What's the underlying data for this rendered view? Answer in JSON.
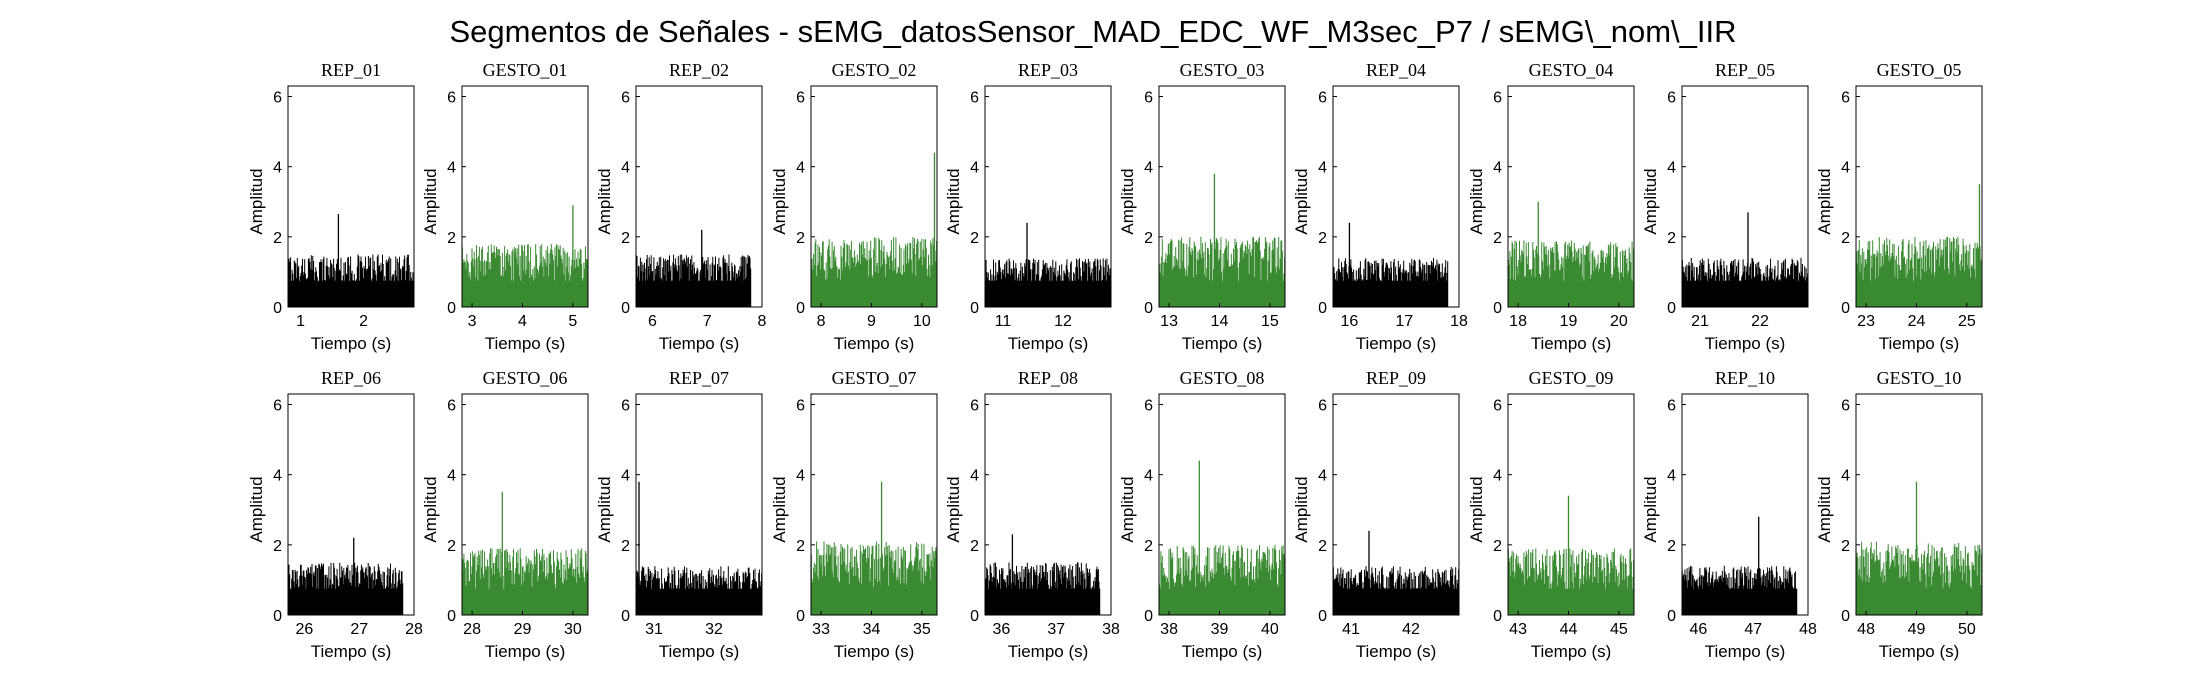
{
  "figure": {
    "title": "Segmentos de Señales - sEMG_datosSensor_MAD_EDC_WF_M3sec_P7 / sEMG\\_nom\\_IIR"
  },
  "colors": {
    "rep": "#000000",
    "gesto": "#3a8a32",
    "axes": "#000000",
    "background": "#ffffff"
  },
  "chart_data": [
    {
      "type": "bar",
      "row": 1,
      "col": 1,
      "title": "REP_01",
      "series": "rep",
      "xlabel": "Tiempo (s)",
      "ylabel": "Amplitud",
      "xlim": [
        0.8,
        2.8
      ],
      "ylim": [
        0,
        6.3
      ],
      "xticks": [
        1,
        2
      ],
      "yticks": [
        0,
        2,
        4,
        6
      ],
      "signal": {
        "x_start": 0.8,
        "x_end": 2.8,
        "typical_peak": 1.5,
        "max_peak": 2.65,
        "max_at": 1.6
      }
    },
    {
      "type": "bar",
      "row": 1,
      "col": 2,
      "title": "GESTO_01",
      "series": "gesto",
      "xlabel": "Tiempo (s)",
      "ylabel": "Amplitud",
      "xlim": [
        2.8,
        5.3
      ],
      "ylim": [
        0,
        6.3
      ],
      "xticks": [
        3,
        4,
        5
      ],
      "yticks": [
        0,
        2,
        4,
        6
      ],
      "signal": {
        "x_start": 2.8,
        "x_end": 5.3,
        "typical_peak": 1.8,
        "max_peak": 2.9,
        "max_at": 5.0
      }
    },
    {
      "type": "bar",
      "row": 1,
      "col": 3,
      "title": "REP_02",
      "series": "rep",
      "xlabel": "Tiempo (s)",
      "ylabel": "Amplitud",
      "xlim": [
        5.7,
        8.0
      ],
      "ylim": [
        0,
        6.3
      ],
      "xticks": [
        6,
        7,
        8
      ],
      "yticks": [
        0,
        2,
        4,
        6
      ],
      "signal": {
        "x_start": 5.7,
        "x_end": 7.8,
        "typical_peak": 1.5,
        "max_peak": 2.2,
        "max_at": 6.9
      }
    },
    {
      "type": "bar",
      "row": 1,
      "col": 4,
      "title": "GESTO_02",
      "series": "gesto",
      "xlabel": "Tiempo (s)",
      "ylabel": "Amplitud",
      "xlim": [
        7.8,
        10.3
      ],
      "ylim": [
        0,
        6.3
      ],
      "xticks": [
        8,
        9,
        10
      ],
      "yticks": [
        0,
        2,
        4,
        6
      ],
      "signal": {
        "x_start": 7.8,
        "x_end": 10.3,
        "typical_peak": 2.0,
        "max_peak": 4.4,
        "max_at": 10.25
      }
    },
    {
      "type": "bar",
      "row": 1,
      "col": 5,
      "title": "REP_03",
      "series": "rep",
      "xlabel": "Tiempo (s)",
      "ylabel": "Amplitud",
      "xlim": [
        10.7,
        12.8
      ],
      "ylim": [
        0,
        6.3
      ],
      "xticks": [
        11,
        12
      ],
      "yticks": [
        0,
        2,
        4,
        6
      ],
      "signal": {
        "x_start": 10.7,
        "x_end": 12.8,
        "typical_peak": 1.4,
        "max_peak": 2.4,
        "max_at": 11.4
      }
    },
    {
      "type": "bar",
      "row": 1,
      "col": 6,
      "title": "GESTO_03",
      "series": "gesto",
      "xlabel": "Tiempo (s)",
      "ylabel": "Amplitud",
      "xlim": [
        12.8,
        15.3
      ],
      "ylim": [
        0,
        6.3
      ],
      "xticks": [
        13,
        14,
        15
      ],
      "yticks": [
        0,
        2,
        4,
        6
      ],
      "signal": {
        "x_start": 12.8,
        "x_end": 15.3,
        "typical_peak": 2.0,
        "max_peak": 3.8,
        "max_at": 13.9
      }
    },
    {
      "type": "bar",
      "row": 1,
      "col": 7,
      "title": "REP_04",
      "series": "rep",
      "xlabel": "Tiempo (s)",
      "ylabel": "Amplitud",
      "xlim": [
        15.7,
        18.0
      ],
      "ylim": [
        0,
        6.3
      ],
      "xticks": [
        16,
        17,
        18
      ],
      "yticks": [
        0,
        2,
        4,
        6
      ],
      "signal": {
        "x_start": 15.7,
        "x_end": 17.8,
        "typical_peak": 1.4,
        "max_peak": 2.4,
        "max_at": 16.0
      }
    },
    {
      "type": "bar",
      "row": 1,
      "col": 8,
      "title": "GESTO_04",
      "series": "gesto",
      "xlabel": "Tiempo (s)",
      "ylabel": "Amplitud",
      "xlim": [
        17.8,
        20.3
      ],
      "ylim": [
        0,
        6.3
      ],
      "xticks": [
        18,
        19,
        20
      ],
      "yticks": [
        0,
        2,
        4,
        6
      ],
      "signal": {
        "x_start": 17.8,
        "x_end": 20.3,
        "typical_peak": 1.9,
        "max_peak": 3.0,
        "max_at": 18.4
      }
    },
    {
      "type": "bar",
      "row": 1,
      "col": 9,
      "title": "REP_05",
      "series": "rep",
      "xlabel": "Tiempo (s)",
      "ylabel": "Amplitud",
      "xlim": [
        20.7,
        22.8
      ],
      "ylim": [
        0,
        6.3
      ],
      "xticks": [
        21,
        22
      ],
      "yticks": [
        0,
        2,
        4,
        6
      ],
      "signal": {
        "x_start": 20.7,
        "x_end": 22.8,
        "typical_peak": 1.4,
        "max_peak": 2.7,
        "max_at": 21.8
      }
    },
    {
      "type": "bar",
      "row": 1,
      "col": 10,
      "title": "GESTO_05",
      "series": "gesto",
      "xlabel": "Tiempo (s)",
      "ylabel": "Amplitud",
      "xlim": [
        22.8,
        25.3
      ],
      "ylim": [
        0,
        6.3
      ],
      "xticks": [
        23,
        24,
        25
      ],
      "yticks": [
        0,
        2,
        4,
        6
      ],
      "signal": {
        "x_start": 22.8,
        "x_end": 25.3,
        "typical_peak": 2.0,
        "max_peak": 3.5,
        "max_at": 25.25
      }
    },
    {
      "type": "bar",
      "row": 2,
      "col": 1,
      "title": "REP_06",
      "series": "rep",
      "xlabel": "Tiempo (s)",
      "ylabel": "Amplitud",
      "xlim": [
        25.7,
        28.0
      ],
      "ylim": [
        0,
        6.3
      ],
      "xticks": [
        26,
        27,
        28
      ],
      "yticks": [
        0,
        2,
        4,
        6
      ],
      "signal": {
        "x_start": 25.7,
        "x_end": 27.8,
        "typical_peak": 1.5,
        "max_peak": 2.2,
        "max_at": 26.9
      }
    },
    {
      "type": "bar",
      "row": 2,
      "col": 2,
      "title": "GESTO_06",
      "series": "gesto",
      "xlabel": "Tiempo (s)",
      "ylabel": "Amplitud",
      "xlim": [
        27.8,
        30.3
      ],
      "ylim": [
        0,
        6.3
      ],
      "xticks": [
        28,
        29,
        30
      ],
      "yticks": [
        0,
        2,
        4,
        6
      ],
      "signal": {
        "x_start": 27.8,
        "x_end": 30.3,
        "typical_peak": 1.9,
        "max_peak": 3.5,
        "max_at": 28.6
      }
    },
    {
      "type": "bar",
      "row": 2,
      "col": 3,
      "title": "REP_07",
      "series": "rep",
      "xlabel": "Tiempo (s)",
      "ylabel": "Amplitud",
      "xlim": [
        30.7,
        32.8
      ],
      "ylim": [
        0,
        6.3
      ],
      "xticks": [
        31,
        32
      ],
      "yticks": [
        0,
        2,
        4,
        6
      ],
      "signal": {
        "x_start": 30.7,
        "x_end": 32.8,
        "typical_peak": 1.4,
        "max_peak": 3.8,
        "max_at": 30.75
      }
    },
    {
      "type": "bar",
      "row": 2,
      "col": 4,
      "title": "GESTO_07",
      "series": "gesto",
      "xlabel": "Tiempo (s)",
      "ylabel": "Amplitud",
      "xlim": [
        32.8,
        35.3
      ],
      "ylim": [
        0,
        6.3
      ],
      "xticks": [
        33,
        34,
        35
      ],
      "yticks": [
        0,
        2,
        4,
        6
      ],
      "signal": {
        "x_start": 32.8,
        "x_end": 35.3,
        "typical_peak": 2.1,
        "max_peak": 3.8,
        "max_at": 34.2
      }
    },
    {
      "type": "bar",
      "row": 2,
      "col": 5,
      "title": "REP_08",
      "series": "rep",
      "xlabel": "Tiempo (s)",
      "ylabel": "Amplitud",
      "xlim": [
        35.7,
        38.0
      ],
      "ylim": [
        0,
        6.3
      ],
      "xticks": [
        36,
        37,
        38
      ],
      "yticks": [
        0,
        2,
        4,
        6
      ],
      "signal": {
        "x_start": 35.7,
        "x_end": 37.8,
        "typical_peak": 1.5,
        "max_peak": 2.3,
        "max_at": 36.2
      }
    },
    {
      "type": "bar",
      "row": 2,
      "col": 6,
      "title": "GESTO_08",
      "series": "gesto",
      "xlabel": "Tiempo (s)",
      "ylabel": "Amplitud",
      "xlim": [
        37.8,
        40.3
      ],
      "ylim": [
        0,
        6.3
      ],
      "xticks": [
        38,
        39,
        40
      ],
      "yticks": [
        0,
        2,
        4,
        6
      ],
      "signal": {
        "x_start": 37.8,
        "x_end": 40.3,
        "typical_peak": 2.0,
        "max_peak": 4.4,
        "max_at": 38.6
      }
    },
    {
      "type": "bar",
      "row": 2,
      "col": 7,
      "title": "REP_09",
      "series": "rep",
      "xlabel": "Tiempo (s)",
      "ylabel": "Amplitud",
      "xlim": [
        40.7,
        42.8
      ],
      "ylim": [
        0,
        6.3
      ],
      "xticks": [
        41,
        42
      ],
      "yticks": [
        0,
        2,
        4,
        6
      ],
      "signal": {
        "x_start": 40.7,
        "x_end": 42.8,
        "typical_peak": 1.4,
        "max_peak": 2.4,
        "max_at": 41.3
      }
    },
    {
      "type": "bar",
      "row": 2,
      "col": 8,
      "title": "GESTO_09",
      "series": "gesto",
      "xlabel": "Tiempo (s)",
      "ylabel": "Amplitud",
      "xlim": [
        42.8,
        45.3
      ],
      "ylim": [
        0,
        6.3
      ],
      "xticks": [
        43,
        44,
        45
      ],
      "yticks": [
        0,
        2,
        4,
        6
      ],
      "signal": {
        "x_start": 42.8,
        "x_end": 45.3,
        "typical_peak": 1.9,
        "max_peak": 3.4,
        "max_at": 44.0
      }
    },
    {
      "type": "bar",
      "row": 2,
      "col": 9,
      "title": "REP_10",
      "series": "rep",
      "xlabel": "Tiempo (s)",
      "ylabel": "Amplitud",
      "xlim": [
        45.7,
        48.0
      ],
      "ylim": [
        0,
        6.3
      ],
      "xticks": [
        46,
        47,
        48
      ],
      "yticks": [
        0,
        2,
        4,
        6
      ],
      "signal": {
        "x_start": 45.7,
        "x_end": 47.8,
        "typical_peak": 1.4,
        "max_peak": 2.8,
        "max_at": 47.1
      }
    },
    {
      "type": "bar",
      "row": 2,
      "col": 10,
      "title": "GESTO_10",
      "series": "gesto",
      "xlabel": "Tiempo (s)",
      "ylabel": "Amplitud",
      "xlim": [
        47.8,
        50.3
      ],
      "ylim": [
        0,
        6.3
      ],
      "xticks": [
        48,
        49,
        50
      ],
      "yticks": [
        0,
        2,
        4,
        6
      ],
      "signal": {
        "x_start": 47.8,
        "x_end": 50.3,
        "typical_peak": 2.1,
        "max_peak": 3.8,
        "max_at": 49.0
      }
    }
  ]
}
